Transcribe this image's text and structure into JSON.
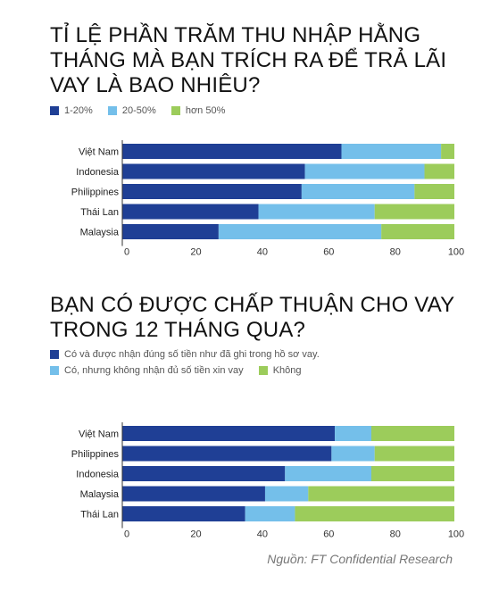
{
  "source": "Nguồn: FT Confidential Research",
  "charts": [
    {
      "title": "TỈ LỆ PHẦN TRĂM THU NHẬP HẰNG THÁNG MÀ BẠN TRÍCH RA ĐỂ TRẢ LÃI VAY LÀ BAO NHIÊU?",
      "legend": [
        {
          "label": "1-20%",
          "color": "#1f3f95"
        },
        {
          "label": "20-50%",
          "color": "#74bfea"
        },
        {
          "label": "hơn 50%",
          "color": "#9ccc5b"
        }
      ]
    },
    {
      "title": "BẠN CÓ ĐƯỢC CHẤP THUẬN CHO VAY TRONG 12 THÁNG QUA?",
      "legend": [
        {
          "label": "Có và được nhận đúng số tiền như đã ghi trong hồ sơ vay.",
          "color": "#1f3f95"
        },
        {
          "label": "Có, nhưng không nhận đủ số tiền xin vay",
          "color": "#74bfea"
        },
        {
          "label": "Không",
          "color": "#9ccc5b"
        }
      ]
    }
  ],
  "chart_data": [
    {
      "type": "bar",
      "orientation": "horizontal",
      "stacked": true,
      "title": "TỈ LỆ PHẦN TRĂM THU NHẬP HẰNG THÁNG MÀ BẠN TRÍCH RA ĐỂ TRẢ LÃI VAY LÀ BAO NHIÊU?",
      "categories": [
        "Việt Nam",
        "Indonesia",
        "Philippines",
        "Thái Lan",
        "Malaysia"
      ],
      "series": [
        {
          "name": "1-20%",
          "color": "#1f3f95",
          "values": [
            66,
            55,
            54,
            41,
            29
          ]
        },
        {
          "name": "20-50%",
          "color": "#74bfea",
          "values": [
            30,
            36,
            34,
            35,
            49
          ]
        },
        {
          "name": "hơn 50%",
          "color": "#9ccc5b",
          "values": [
            4,
            9,
            12,
            24,
            22
          ]
        }
      ],
      "xlim": [
        0,
        100
      ],
      "xticks": [
        0,
        20,
        40,
        60,
        80,
        100
      ],
      "legend_position": "top-left",
      "grid": false
    },
    {
      "type": "bar",
      "orientation": "horizontal",
      "stacked": true,
      "title": "BẠN CÓ ĐƯỢC CHẤP THUẬN CHO VAY TRONG 12 THÁNG QUA?",
      "categories": [
        "Việt Nam",
        "Philippines",
        "Indonesia",
        "Malaysia",
        "Thái Lan"
      ],
      "series": [
        {
          "name": "Có và được nhận đúng số tiền như đã ghi trong hồ sơ vay.",
          "color": "#1f3f95",
          "values": [
            64,
            63,
            49,
            43,
            37
          ]
        },
        {
          "name": "Có, nhưng không nhận đủ số tiền xin vay",
          "color": "#74bfea",
          "values": [
            11,
            13,
            26,
            13,
            15
          ]
        },
        {
          "name": "Không",
          "color": "#9ccc5b",
          "values": [
            25,
            24,
            25,
            44,
            48
          ]
        }
      ],
      "xlim": [
        0,
        100
      ],
      "xticks": [
        0,
        20,
        40,
        60,
        80,
        100
      ],
      "legend_position": "top-left",
      "grid": false
    }
  ]
}
